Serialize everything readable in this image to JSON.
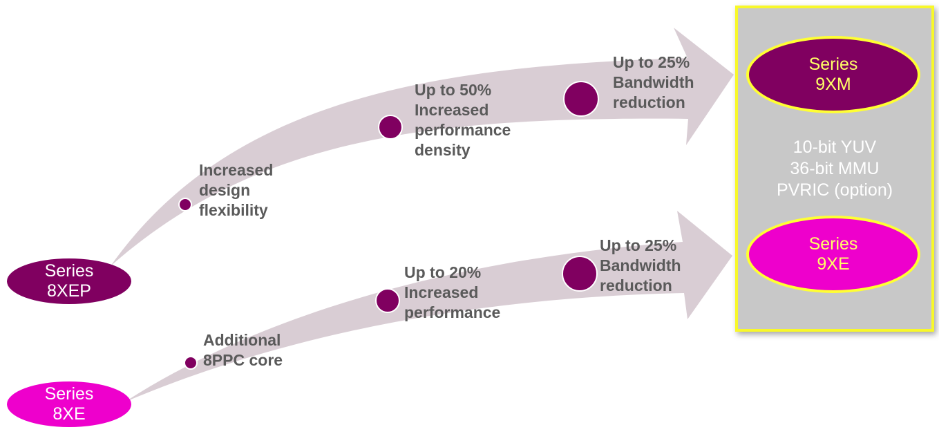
{
  "colors": {
    "arrow_fill": "#d9cdd4",
    "dark_purple": "#800060",
    "magenta": "#ee00cc",
    "box_fill": "#c8c8c8",
    "box_border": "#f8f82a",
    "label_text": "#5a5a5a",
    "target_text": "#ffff66"
  },
  "sources": {
    "series_8xep": {
      "line1": "Series",
      "line2": "8XEP"
    },
    "series_8xe": {
      "line1": "Series",
      "line2": "8XE"
    }
  },
  "upper_path": {
    "step1": {
      "line1": "Increased",
      "line2": "design",
      "line3": "flexibility"
    },
    "step2": {
      "line1": "Up to 50%",
      "line2": "Increased",
      "line3": "performance",
      "line4": "density"
    },
    "step3": {
      "line1": "Up to 25%",
      "line2": "Bandwidth",
      "line3": "reduction"
    }
  },
  "lower_path": {
    "step1": {
      "line1": "Additional",
      "line2": "8PPC core"
    },
    "step2": {
      "line1": "Up to 20%",
      "line2": "Increased",
      "line3": "performance"
    },
    "step3": {
      "line1": "Up to 25%",
      "line2": "Bandwidth",
      "line3": "reduction"
    }
  },
  "target_box": {
    "series_9xm": {
      "line1": "Series",
      "line2": "9XM"
    },
    "features": [
      "10-bit YUV",
      "36-bit MMU",
      "PVRIC (option)"
    ],
    "series_9xe": {
      "line1": "Series",
      "line2": "9XE"
    }
  }
}
